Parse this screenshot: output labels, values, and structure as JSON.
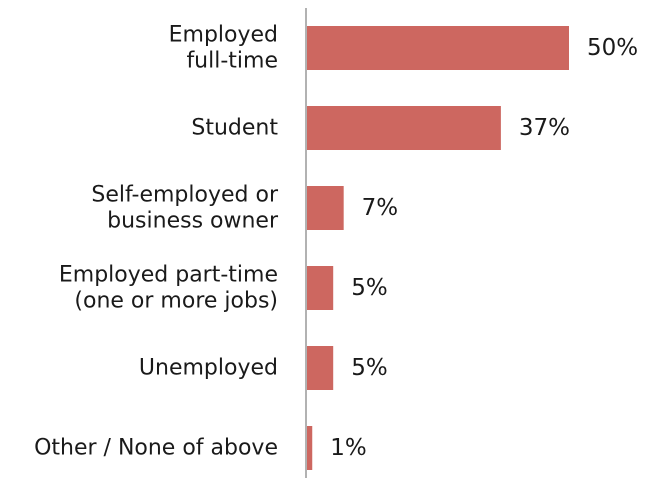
{
  "chart_data": {
    "type": "bar",
    "orientation": "horizontal",
    "categories": [
      [
        "Employed",
        "full-time"
      ],
      [
        "Student"
      ],
      [
        "Self-employed or",
        "business owner"
      ],
      [
        "Employed part-time",
        "(one or more jobs)"
      ],
      [
        "Unemployed"
      ],
      [
        "Other / None of above"
      ]
    ],
    "values": [
      50,
      37,
      7,
      5,
      5,
      1
    ],
    "value_labels": [
      "50%",
      "37%",
      "7%",
      "5%",
      "5%",
      "1%"
    ],
    "unit": "%",
    "title": "",
    "xlabel": "",
    "ylabel": "",
    "xlim": [
      0,
      50
    ],
    "grid": false,
    "legend": "none",
    "colors": {
      "bar": "#cd6760",
      "axis": "#999999",
      "text": "#1a1a1a"
    }
  }
}
